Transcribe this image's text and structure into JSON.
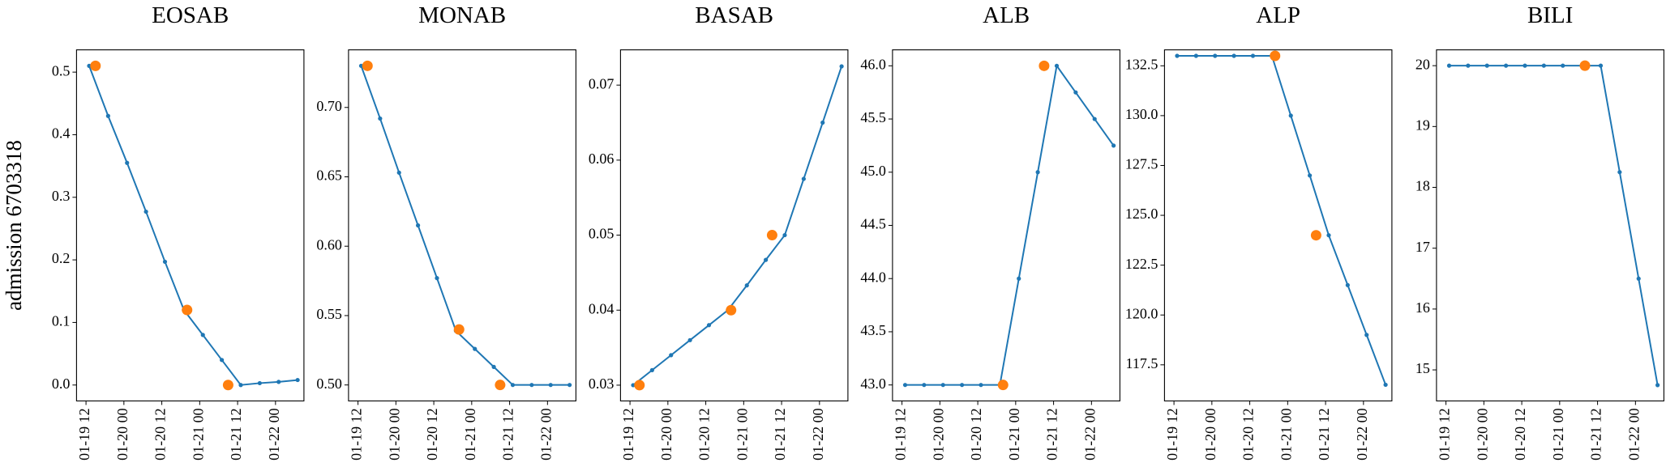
{
  "chart_data": [
    {
      "type": "line",
      "title": "EOSAB",
      "ylabel": "admission 6703318",
      "xlim": [
        "01-19 09",
        "01-22 09"
      ],
      "xticks": [
        "01-19 12",
        "01-20 00",
        "01-20 12",
        "01-21 00",
        "01-21 12",
        "01-22 00"
      ],
      "ylim": [
        -0.0254,
        0.5356
      ],
      "yticks": [
        {
          "value": 0,
          "label": "0.0"
        },
        0.1,
        0.2,
        0.3,
        0.4,
        0.5
      ],
      "series": [
        {
          "color": "#1f77b4",
          "mode": "line",
          "x": [
            "01-19 13",
            "01-19 19",
            "01-20 01",
            "01-20 07",
            "01-20 13",
            "01-20 19",
            "01-21 01",
            "01-21 07",
            "01-21 13",
            "01-21 19",
            "01-22 01",
            "01-22 07"
          ],
          "values": [
            0.51,
            0.43,
            0.355,
            0.277,
            0.197,
            0.12,
            0.08,
            0.04,
            0.0,
            0.003,
            0.005,
            0.008
          ]
        },
        {
          "color": "#ff7f0e",
          "mode": "markers",
          "x": [
            "01-19 15",
            "01-20 20",
            "01-21 09"
          ],
          "values": [
            0.51,
            0.12,
            0.0
          ]
        }
      ]
    },
    {
      "type": "line",
      "title": "MONAB",
      "xlim": [
        "01-19 09",
        "01-22 09"
      ],
      "xticks": [
        "01-19 12",
        "01-20 00",
        "01-20 12",
        "01-21 00",
        "01-21 12",
        "01-22 00"
      ],
      "ylim": [
        0.4885,
        0.7415
      ],
      "yticks": [
        {
          "value": 0.5,
          "label": "0.50"
        },
        0.55,
        {
          "value": 0.6,
          "label": "0.60"
        },
        0.65,
        {
          "value": 0.7,
          "label": "0.70"
        }
      ],
      "series": [
        {
          "color": "#1f77b4",
          "mode": "line",
          "x": [
            "01-19 13",
            "01-19 19",
            "01-20 01",
            "01-20 07",
            "01-20 13",
            "01-20 19",
            "01-21 01",
            "01-21 07",
            "01-21 13",
            "01-21 19",
            "01-22 01",
            "01-22 07"
          ],
          "values": [
            0.73,
            0.692,
            0.653,
            0.615,
            0.577,
            0.539,
            0.526,
            0.513,
            0.5,
            0.5,
            0.5,
            0.5
          ]
        },
        {
          "color": "#ff7f0e",
          "mode": "markers",
          "x": [
            "01-19 15",
            "01-20 20",
            "01-21 09"
          ],
          "values": [
            0.73,
            0.54,
            0.5
          ]
        }
      ]
    },
    {
      "type": "line",
      "title": "BASAB",
      "xlim": [
        "01-19 09",
        "01-22 09"
      ],
      "xticks": [
        "01-19 12",
        "01-20 00",
        "01-20 12",
        "01-21 00",
        "01-21 12",
        "01-22 00"
      ],
      "ylim": [
        0.0279,
        0.0747
      ],
      "yticks": [
        0.03,
        0.04,
        0.05,
        0.06,
        0.07
      ],
      "series": [
        {
          "color": "#1f77b4",
          "mode": "line",
          "x": [
            "01-19 13",
            "01-19 19",
            "01-20 01",
            "01-20 07",
            "01-20 13",
            "01-20 19",
            "01-21 01",
            "01-21 07",
            "01-21 13",
            "01-21 19",
            "01-22 01",
            "01-22 07"
          ],
          "values": [
            0.03,
            0.032,
            0.034,
            0.036,
            0.038,
            0.04,
            0.0433,
            0.0467,
            0.05,
            0.0575,
            0.065,
            0.0725
          ]
        },
        {
          "color": "#ff7f0e",
          "mode": "markers",
          "x": [
            "01-19 15",
            "01-20 20",
            "01-21 09"
          ],
          "values": [
            0.03,
            0.04,
            0.05
          ]
        }
      ]
    },
    {
      "type": "line",
      "title": "ALB",
      "xlim": [
        "01-19 09",
        "01-22 09"
      ],
      "xticks": [
        "01-19 12",
        "01-20 00",
        "01-20 12",
        "01-21 00",
        "01-21 12",
        "01-22 00"
      ],
      "ylim": [
        42.85,
        46.15
      ],
      "yticks": [
        {
          "value": 43,
          "label": "43.0"
        },
        43.5,
        {
          "value": 44,
          "label": "44.0"
        },
        44.5,
        {
          "value": 45,
          "label": "45.0"
        },
        45.5,
        {
          "value": 46,
          "label": "46.0"
        }
      ],
      "series": [
        {
          "color": "#1f77b4",
          "mode": "line",
          "x": [
            "01-19 13",
            "01-19 19",
            "01-20 01",
            "01-20 07",
            "01-20 13",
            "01-20 19",
            "01-21 01",
            "01-21 07",
            "01-21 13",
            "01-21 19",
            "01-22 01",
            "01-22 07"
          ],
          "values": [
            43.0,
            43.0,
            43.0,
            43.0,
            43.0,
            43.0,
            44.0,
            45.0,
            46.0,
            45.75,
            45.5,
            45.25
          ]
        },
        {
          "color": "#ff7f0e",
          "mode": "markers",
          "x": [
            "01-20 20",
            "01-21 09"
          ],
          "values": [
            43.0,
            46.0
          ]
        }
      ]
    },
    {
      "type": "line",
      "title": "ALP",
      "xlim": [
        "01-19 09",
        "01-22 09"
      ],
      "xticks": [
        "01-19 12",
        "01-20 00",
        "01-20 12",
        "01-21 00",
        "01-21 12",
        "01-22 00"
      ],
      "ylim": [
        115.69,
        133.3
      ],
      "yticks": [
        117.5,
        {
          "value": 120,
          "label": "120.0"
        },
        122.5,
        {
          "value": 125,
          "label": "125.0"
        },
        127.5,
        {
          "value": 130,
          "label": "130.0"
        },
        132.5
      ],
      "series": [
        {
          "color": "#1f77b4",
          "mode": "line",
          "x": [
            "01-19 13",
            "01-19 19",
            "01-20 01",
            "01-20 07",
            "01-20 13",
            "01-20 19",
            "01-21 01",
            "01-21 07",
            "01-21 13",
            "01-21 19",
            "01-22 01",
            "01-22 07"
          ],
          "values": [
            133,
            133,
            133,
            133,
            133,
            133,
            130,
            127,
            124,
            121.5,
            119,
            116.5
          ]
        },
        {
          "color": "#ff7f0e",
          "mode": "markers",
          "x": [
            "01-20 20",
            "01-21 09"
          ],
          "values": [
            133,
            124
          ]
        }
      ]
    },
    {
      "type": "line",
      "title": "BILI",
      "xlim": [
        "01-19 09",
        "01-22 09"
      ],
      "xticks": [
        "01-19 12",
        "01-20 00",
        "01-20 12",
        "01-21 00",
        "01-21 12",
        "01-22 00"
      ],
      "ylim": [
        14.49,
        20.26
      ],
      "yticks": [
        15,
        16,
        17,
        18,
        19,
        20
      ],
      "series": [
        {
          "color": "#1f77b4",
          "mode": "line",
          "x": [
            "01-19 13",
            "01-19 19",
            "01-20 01",
            "01-20 07",
            "01-20 13",
            "01-20 19",
            "01-21 01",
            "01-21 07",
            "01-21 13",
            "01-21 19",
            "01-22 01",
            "01-22 07"
          ],
          "values": [
            20,
            20,
            20,
            20,
            20,
            20,
            20,
            20,
            20,
            18.25,
            16.5,
            14.75
          ]
        },
        {
          "color": "#ff7f0e",
          "mode": "markers",
          "x": [
            "01-21 08"
          ],
          "values": [
            20
          ]
        }
      ]
    }
  ]
}
